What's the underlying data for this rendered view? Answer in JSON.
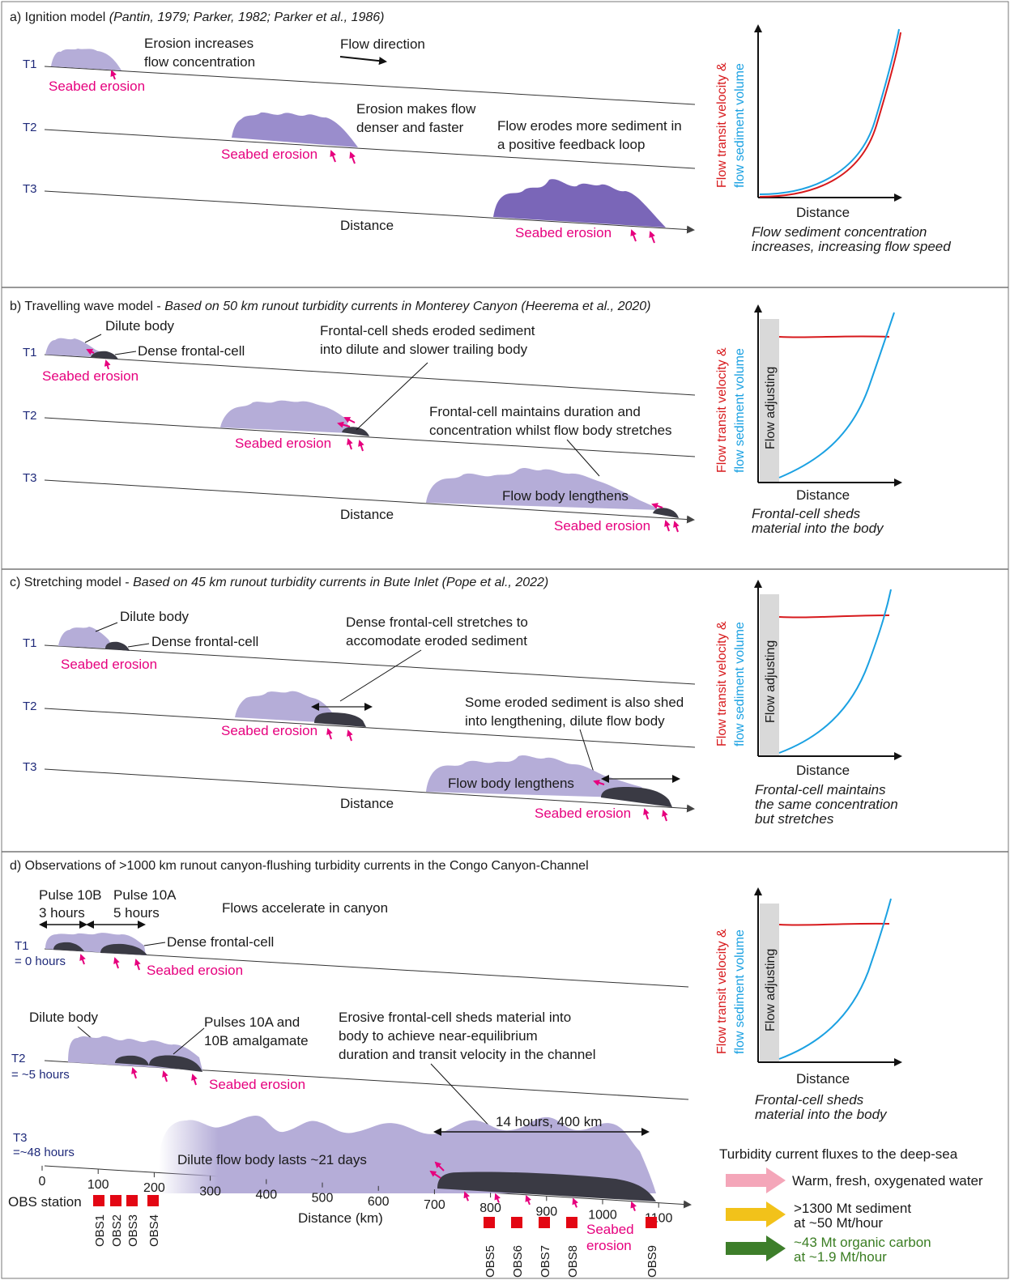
{
  "colors": {
    "light_body": "#b5add8",
    "mid_body": "#9a8dcc",
    "dark_body": "#7a66b8",
    "frontal_cell": "#3a3a44",
    "erosion_pink": "#e6007e",
    "velocity_red": "#d7191c",
    "volume_blue": "#1ba1e2",
    "label_navy": "#1f2a7a",
    "adjusting_grey": "#d9d9d9",
    "obs_red": "#e30613",
    "flux_pink": "#f4a6b9",
    "flux_yellow": "#f2c21a",
    "flux_green": "#3d7e2a"
  },
  "common": {
    "seabed_erosion": "Seabed erosion",
    "distance": "Distance",
    "graph_y_label_a": "Flow transit velocity &",
    "graph_y_label_b": "flow sediment volume",
    "flow_adjusting": "Flow adjusting",
    "t1": "T1",
    "t2": "T2",
    "t3": "T3"
  },
  "panel_a": {
    "title_main": "a) Ignition model ",
    "title_ref": "(Pantin, 1979; Parker, 1982; Parker et al., 1986)",
    "note1_l1": "Erosion increases",
    "note1_l2": "flow concentration",
    "flow_direction": "Flow direction",
    "note2_l1": "Erosion makes flow",
    "note2_l2": "denser and faster",
    "note3_l1": "Flow erodes more sediment in",
    "note3_l2": "a positive feedback loop",
    "caption_l1": "Flow sediment concentration",
    "caption_l2": "increases, increasing flow speed"
  },
  "panel_b": {
    "title_main": "b) Travelling wave  model - ",
    "title_ref": "Based on 50 km runout turbidity currents in Monterey Canyon (Heerema et al., 2020)",
    "dilute_body": "Dilute body",
    "dense_frontal": "Dense frontal-cell",
    "note1_l1": "Frontal-cell sheds eroded sediment",
    "note1_l2": "into dilute and slower trailing body",
    "note2_l1": "Frontal-cell maintains duration and",
    "note2_l2": "concentration whilst flow body stretches",
    "body_lengthens": "Flow  body lengthens",
    "caption_l1": "Frontal-cell sheds",
    "caption_l2": "material into the body"
  },
  "panel_c": {
    "title_main": "c) Stretching model - ",
    "title_ref": "Based on 45 km runout turbidity currents in Bute Inlet (Pope et al., 2022)",
    "dilute_body": "Dilute body",
    "dense_frontal": "Dense frontal-cell",
    "note1_l1": "Dense frontal-cell stretches to",
    "note1_l2": "accomodate eroded sediment",
    "note2_l1": "Some eroded sediment is also shed",
    "note2_l2": "into lengthening, dilute flow body",
    "body_lengthens": "Flow  body lengthens",
    "caption_l1": "Frontal-cell maintains",
    "caption_l2": "the same concentration",
    "caption_l3": "but stretches"
  },
  "panel_d": {
    "title": "d) Observations of >1000 km runout canyon-flushing turbidity currents in the Congo Canyon-Channel",
    "pulse10b": "Pulse 10B",
    "pulse10b_dur": "3 hours",
    "pulse10a": "Pulse 10A",
    "pulse10a_dur": "5 hours",
    "accelerate": "Flows accelerate in canyon",
    "dense_frontal": "Dense frontal-cell",
    "t1_time": "= 0 hours",
    "dilute_body": "Dilute body",
    "amalg_l1": "Pulses 10A and",
    "amalg_l2": "10B amalgamate",
    "t2_time": "= ~5 hours",
    "note_l1": "Erosive frontal-cell sheds material into",
    "note_l2": "body to achieve near-equilibrium",
    "note_l3": "duration and transit velocity in the channel",
    "t3_time": "=~48 hours",
    "span": "14 hours, 400 km",
    "dilute_lasts": "Dilute flow body lasts ~21 days",
    "obs_station": "OBS station",
    "distance_km": "Distance (km)",
    "erosion_l1": "Seabed",
    "erosion_l2": "erosion",
    "ticks": [
      "0",
      "100",
      "200",
      "300",
      "400",
      "500",
      "600",
      "700",
      "800",
      "900",
      "1000",
      "1100"
    ],
    "obs_left": [
      "OBS1",
      "OBS2",
      "OBS3",
      "OBS4"
    ],
    "obs_right": [
      "OBS5",
      "OBS6",
      "OBS7",
      "OBS8",
      "OBS9"
    ],
    "caption_l1": "Frontal-cell sheds",
    "caption_l2": "material into the body",
    "flux_title": "Turbidity current fluxes to the deep-sea",
    "flux1": "Warm, fresh, oxygenated water",
    "flux2_l1": ">1300  Mt sediment",
    "flux2_l2": "at ~50 Mt/hour",
    "flux3_l1": "~43 Mt organic carbon",
    "flux3_l2": "at  ~1.9 Mt/hour"
  }
}
